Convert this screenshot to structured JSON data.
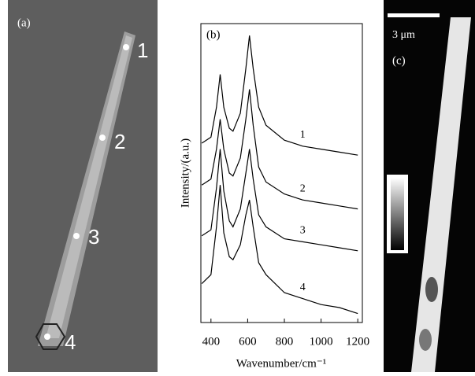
{
  "panels": {
    "a": {
      "label": "(a)",
      "markers": [
        "1",
        "2",
        "3",
        "4"
      ]
    },
    "c": {
      "label": "(c)",
      "scale_bar": "3 μm"
    }
  },
  "chart_data": {
    "type": "line",
    "panel_label": "(b)",
    "x_label": "Wavenumber/cm⁻¹",
    "y_label": "Intensity/(a.u.)",
    "x": [
      350,
      400,
      430,
      450,
      470,
      500,
      520,
      560,
      590,
      610,
      630,
      660,
      700,
      800,
      900,
      1000,
      1100,
      1200
    ],
    "xlim": [
      345,
      1225
    ],
    "xticks": [
      400,
      600,
      800,
      1000,
      1200
    ],
    "ylim": [
      0,
      100
    ],
    "series": [
      {
        "name": "1",
        "color": "#000000",
        "values": [
          60,
          62,
          72,
          83,
          72,
          65,
          64,
          70,
          85,
          96,
          85,
          72,
          66,
          61,
          59,
          58,
          57,
          56
        ]
      },
      {
        "name": "2",
        "color": "#000000",
        "values": [
          46,
          48,
          58,
          68,
          58,
          50,
          49,
          55,
          68,
          78,
          66,
          52,
          47,
          43,
          41,
          40,
          39,
          38
        ]
      },
      {
        "name": "3",
        "color": "#000000",
        "values": [
          29,
          31,
          45,
          58,
          44,
          34,
          32,
          38,
          50,
          58,
          48,
          36,
          32,
          28,
          27,
          26,
          25,
          24
        ]
      },
      {
        "name": "4",
        "color": "#000000",
        "values": [
          13,
          16,
          32,
          46,
          30,
          22,
          21,
          26,
          36,
          41,
          32,
          20,
          16,
          10,
          8,
          6,
          5,
          3
        ]
      }
    ]
  }
}
